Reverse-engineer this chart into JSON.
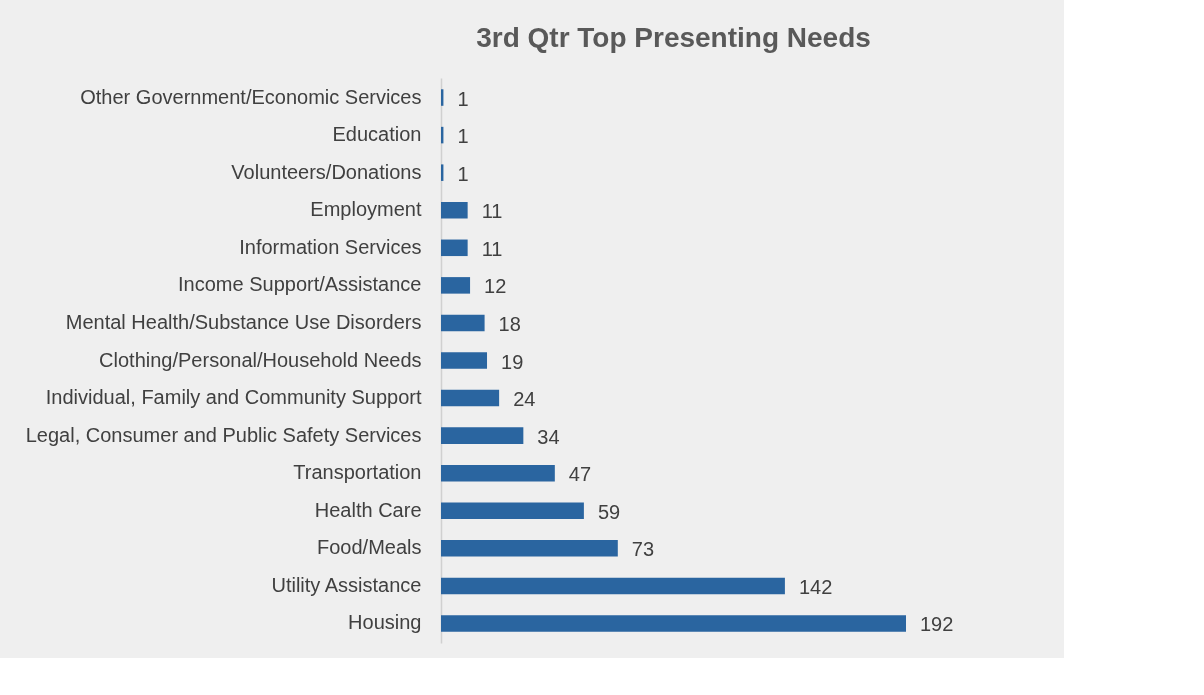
{
  "chart_data": {
    "type": "bar",
    "orientation": "horizontal",
    "title": "3rd Qtr Top Presenting Needs",
    "categories": [
      "Other Government/Economic Services",
      "Education",
      "Volunteers/Donations",
      "Employment",
      "Information Services",
      "Income Support/Assistance",
      "Mental Health/Substance Use Disorders",
      "Clothing/Personal/Household Needs",
      "Individual, Family and Community Support",
      "Legal, Consumer and Public Safety Services",
      "Transportation",
      "Health Care",
      "Food/Meals",
      "Utility Assistance",
      "Housing"
    ],
    "values": [
      1,
      1,
      1,
      11,
      11,
      12,
      18,
      19,
      24,
      34,
      47,
      59,
      73,
      142,
      192
    ],
    "color": "#2a65a0",
    "data_labels": true,
    "grid": false,
    "tick_labels": "y"
  }
}
